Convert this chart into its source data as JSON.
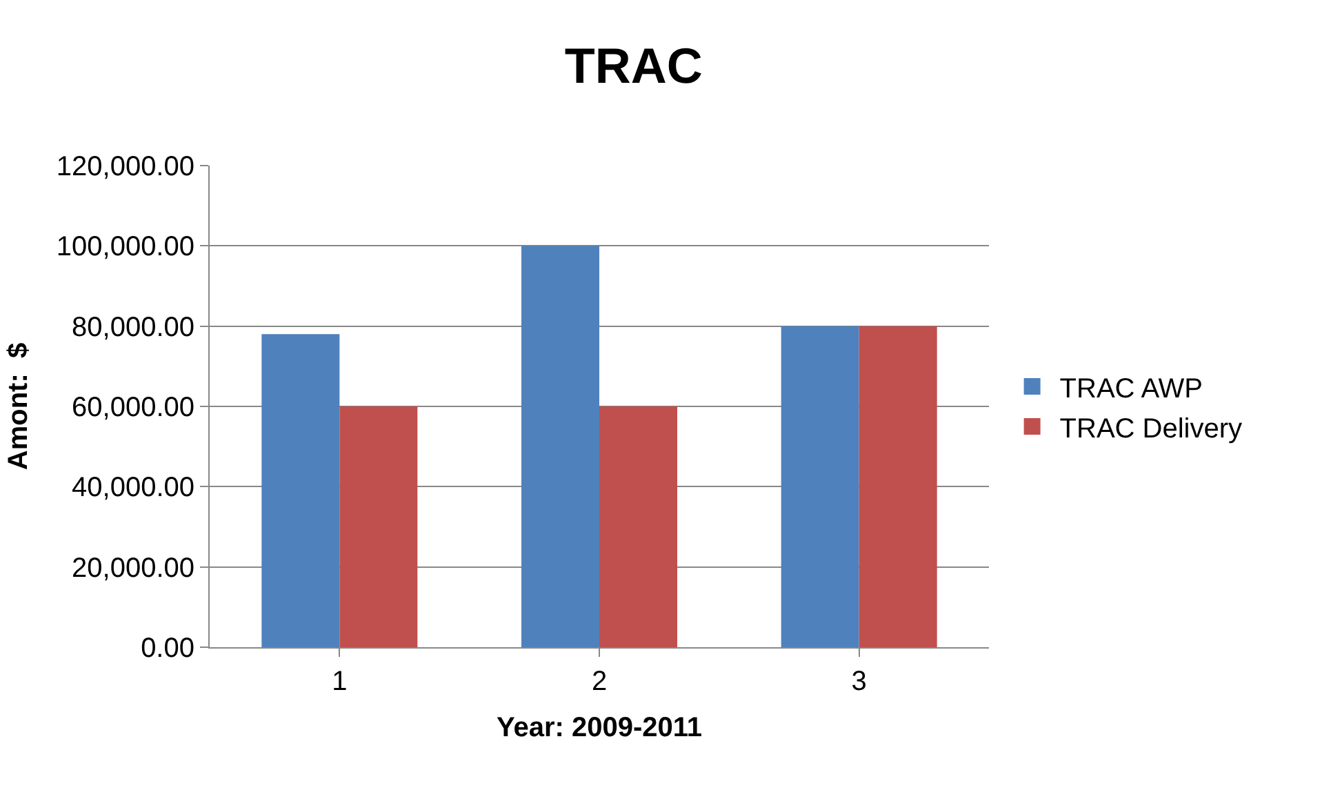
{
  "chart_data": {
    "type": "bar",
    "title": "TRAC",
    "xlabel": "Year: 2009-2011",
    "ylabel": "Amont:  $",
    "categories": [
      "1",
      "2",
      "3"
    ],
    "series": [
      {
        "name": "TRAC AWP",
        "color": "#4f81bd",
        "values": [
          78000,
          100000,
          80000
        ]
      },
      {
        "name": "TRAC Delivery",
        "color": "#c0504d",
        "values": [
          60000,
          60000,
          80000
        ]
      }
    ],
    "ylim": [
      0,
      120000
    ],
    "yticks": [
      {
        "value": 0,
        "label": "0.00"
      },
      {
        "value": 20000,
        "label": "20,000.00"
      },
      {
        "value": 40000,
        "label": "40,000.00"
      },
      {
        "value": 60000,
        "label": "60,000.00"
      },
      {
        "value": 80000,
        "label": "80,000.00"
      },
      {
        "value": 100000,
        "label": "100,000.00"
      },
      {
        "value": 120000,
        "label": "120,000.00"
      }
    ],
    "grid": "y",
    "legend": "right"
  }
}
